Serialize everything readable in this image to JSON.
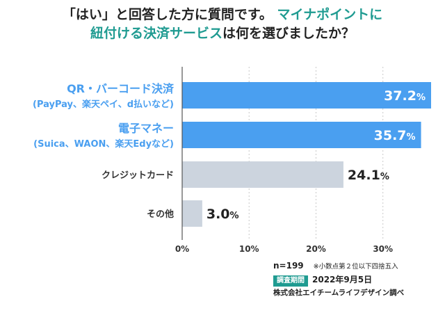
{
  "title": {
    "line1_black": "「はい」と回答した方に質問です。",
    "line1_teal": "マイナポイントに",
    "line2_teal": "紐付ける決済サービス",
    "line2_black": "は何を選びましたか？"
  },
  "chart_data": {
    "type": "bar",
    "orientation": "horizontal",
    "categories": [
      {
        "line1": "QR・バーコード決済",
        "line2": "(PayPay、楽天ペイ、d払いなど)",
        "highlight": true
      },
      {
        "line1": "電子マネー",
        "line2": "(Suica、WAON、楽天Edyなど)",
        "highlight": true
      },
      {
        "line1": "クレジットカード",
        "line2": "",
        "highlight": false
      },
      {
        "line1": "その他",
        "line2": "",
        "highlight": false
      }
    ],
    "values": [
      37.2,
      35.7,
      24.1,
      3.0
    ],
    "value_labels": [
      "37.2",
      "35.7",
      "24.1",
      "3.0"
    ],
    "unit": "%",
    "xlim": [
      0,
      37.2
    ],
    "ticks": [
      "0%",
      "10%",
      "20%",
      "30%"
    ],
    "tick_values": [
      0,
      10,
      20,
      30
    ],
    "colors": {
      "highlight": "#4a9ff0",
      "normal": "#ccd4de",
      "highlight_label": "#4a9ff0",
      "normal_label": "#333333",
      "grid": "#c8c8c8"
    }
  },
  "footer": {
    "n": "n=199",
    "note": "※小数点第２位以下四捨五入",
    "period_label": "調査期間",
    "date": "2022年9月5日",
    "credit": "株式会社エイチームライフデザイン調べ"
  }
}
